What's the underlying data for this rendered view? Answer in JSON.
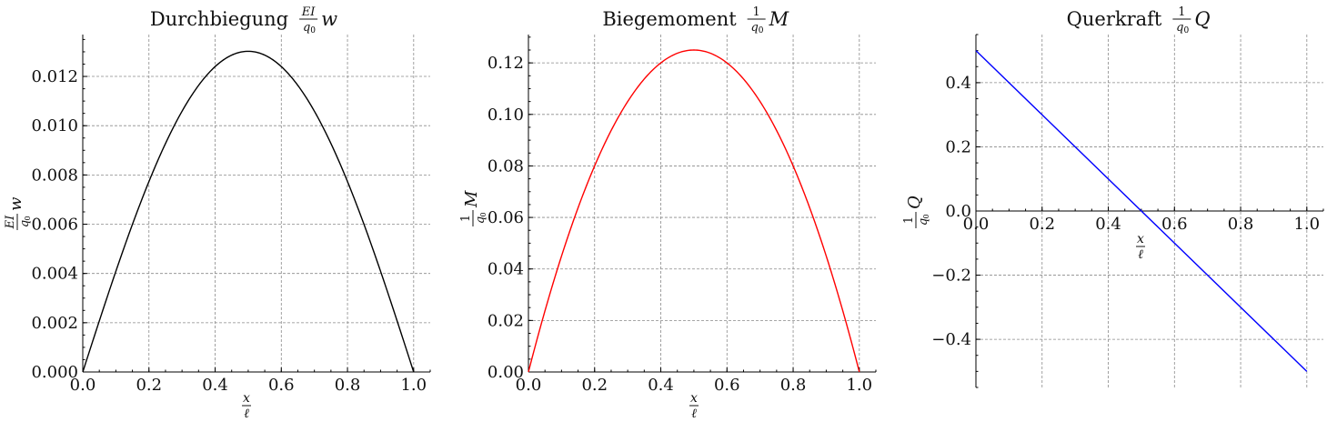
{
  "chart_data": [
    {
      "type": "line",
      "title": "Durchbiegung",
      "title_frac_num": "EI",
      "title_frac_den": "q0",
      "title_var": "w",
      "xlabel": "x/ℓ",
      "ylabel": "EI/q0 w",
      "x": [
        0.0,
        0.05,
        0.1,
        0.15,
        0.2,
        0.25,
        0.3,
        0.35,
        0.4,
        0.45,
        0.5,
        0.55,
        0.6,
        0.65,
        0.7,
        0.75,
        0.8,
        0.85,
        0.9,
        0.95,
        1.0
      ],
      "series": [
        {
          "values": [
            0.0,
            0.002077,
            0.004058,
            0.00587,
            0.007467,
            0.008819,
            0.009917,
            0.010767,
            0.011383,
            0.011793,
            0.013021,
            0.011793,
            0.011383,
            0.010767,
            0.009917,
            0.008819,
            0.007467,
            0.00587,
            0.004058,
            0.002077,
            0.0
          ],
          "color": "#000000"
        }
      ],
      "xlim": [
        0.0,
        1.05
      ],
      "ylim": [
        0.0,
        0.0137
      ],
      "xticks": [
        "0.0",
        "0.2",
        "0.4",
        "0.6",
        "0.8",
        "1.0"
      ],
      "yticks": [
        "0.000",
        "0.002",
        "0.004",
        "0.006",
        "0.008",
        "0.010",
        "0.012"
      ],
      "grid": true
    },
    {
      "type": "line",
      "title": "Biegemoment",
      "title_frac_num": "1",
      "title_frac_den": "q0",
      "title_var": "M",
      "xlabel": "x/ℓ",
      "ylabel": "1/q0 M",
      "x": [
        0.0,
        0.05,
        0.1,
        0.15,
        0.2,
        0.25,
        0.3,
        0.35,
        0.4,
        0.45,
        0.5,
        0.55,
        0.6,
        0.65,
        0.7,
        0.75,
        0.8,
        0.85,
        0.9,
        0.95,
        1.0
      ],
      "series": [
        {
          "values": [
            0.0,
            0.02375,
            0.045,
            0.06375,
            0.08,
            0.09375,
            0.105,
            0.11375,
            0.12,
            0.12375,
            0.125,
            0.12375,
            0.12,
            0.11375,
            0.105,
            0.09375,
            0.08,
            0.06375,
            0.045,
            0.02375,
            0.0
          ],
          "color": "#ff0000"
        }
      ],
      "xlim": [
        0.0,
        1.05
      ],
      "ylim": [
        0.0,
        0.131
      ],
      "xticks": [
        "0.0",
        "0.2",
        "0.4",
        "0.6",
        "0.8",
        "1.0"
      ],
      "yticks": [
        "0.00",
        "0.02",
        "0.04",
        "0.06",
        "0.08",
        "0.10",
        "0.12"
      ],
      "grid": true
    },
    {
      "type": "line",
      "title": "Querkraft",
      "title_frac_num": "1",
      "title_frac_den": "q0",
      "title_var": "Q",
      "xlabel": "x/ℓ",
      "ylabel": "1/q0 Q",
      "x": [
        0.0,
        1.0
      ],
      "series": [
        {
          "values": [
            0.5,
            -0.5
          ],
          "color": "#0000ff"
        }
      ],
      "xlim": [
        0.0,
        1.05
      ],
      "ylim": [
        -0.55,
        0.55
      ],
      "xticks": [
        "0.0",
        "0.2",
        "0.4",
        "0.6",
        "0.8",
        "1.0"
      ],
      "yticks": [
        "−0.4",
        "−0.2",
        "0.0",
        "0.2",
        "0.4"
      ],
      "grid": true
    }
  ]
}
